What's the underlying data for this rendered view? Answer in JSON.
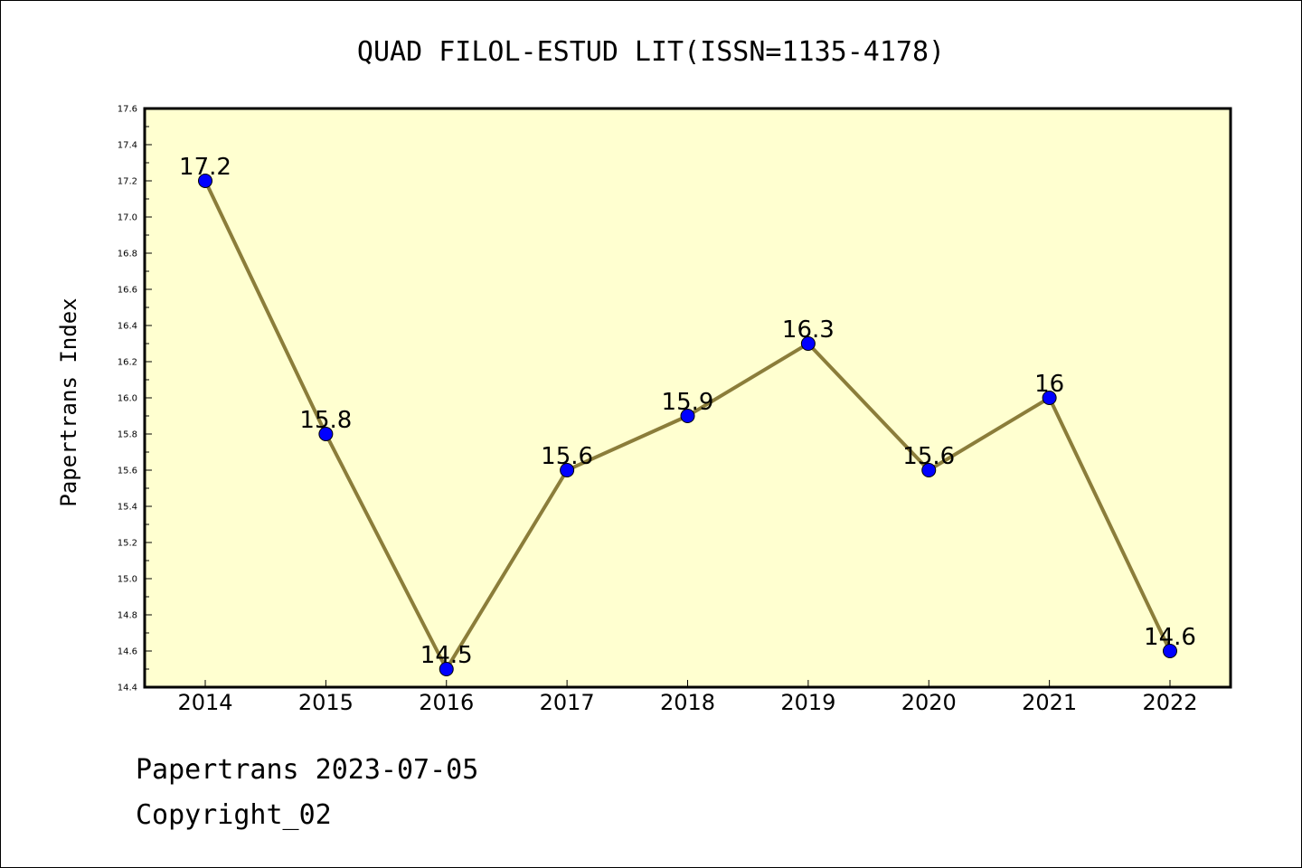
{
  "chart_data": {
    "type": "line",
    "title": "QUAD FILOL-ESTUD LIT(ISSN=1135-4178)",
    "xlabel": "",
    "ylabel": "Papertrans Index",
    "x": [
      "2014",
      "2015",
      "2016",
      "2017",
      "2018",
      "2019",
      "2020",
      "2021",
      "2022"
    ],
    "series": [
      {
        "values": [
          17.2,
          15.8,
          14.5,
          15.6,
          15.9,
          16.3,
          15.6,
          16.0,
          14.6
        ],
        "labels": [
          "17.2",
          "15.8",
          "14.5",
          "15.6",
          "15.9",
          "16.3",
          "15.6",
          "16",
          "14.6"
        ]
      }
    ],
    "ylim": [
      14.4,
      17.6
    ],
    "yticks": [
      "14.4",
      "14.6",
      "14.8",
      "15.0",
      "15.2",
      "15.4",
      "15.6",
      "15.8",
      "16.0",
      "16.2",
      "16.4",
      "16.6",
      "16.8",
      "17.0",
      "17.2",
      "17.4",
      "17.6"
    ],
    "grid": false,
    "legend": "none",
    "colors": {
      "plot_background": "#ffffd0",
      "line": "#8b7d3a",
      "marker": "#0000ff"
    }
  },
  "footer": {
    "line1": "Papertrans 2023-07-05",
    "line2": "Copyright_02"
  }
}
